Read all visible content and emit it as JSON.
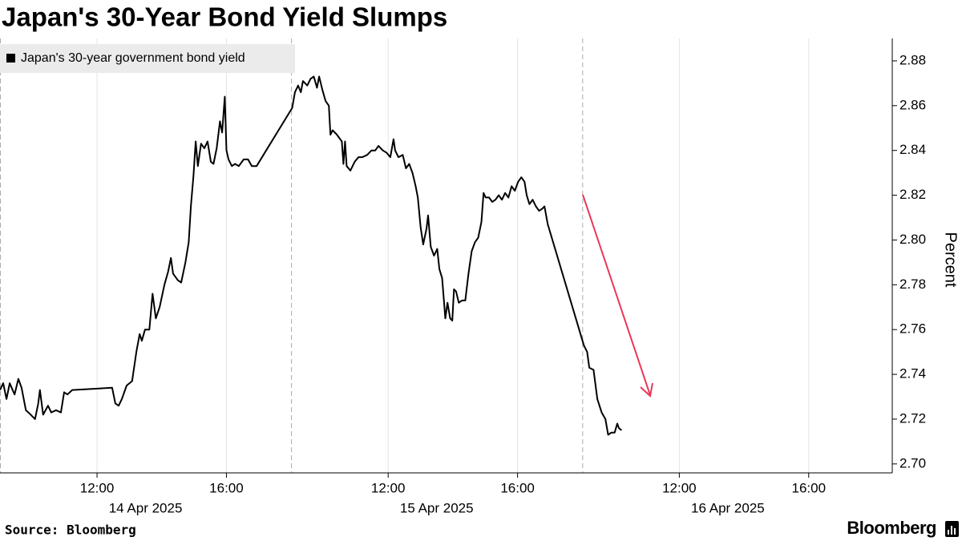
{
  "chart_data": {
    "type": "line",
    "title": "Japan's 30-Year Bond Yield Slumps",
    "y_label": "Percent",
    "source": "Source: Bloomberg",
    "brand": "Bloomberg",
    "date_labels": [
      "14 Apr 2025",
      "15 Apr 2025",
      "16 Apr 2025"
    ],
    "xlim": [
      "2025-04-14 09:00",
      "2025-04-16 18:35"
    ],
    "xticks": [
      {
        "value": "2025-04-14 12:00",
        "label": "12:00"
      },
      {
        "value": "2025-04-14 16:00",
        "label": "16:00"
      },
      {
        "value": "2025-04-15 12:00",
        "label": "12:00"
      },
      {
        "value": "2025-04-15 16:00",
        "label": "16:00"
      },
      {
        "value": "2025-04-16 12:00",
        "label": "12:00"
      },
      {
        "value": "2025-04-16 16:00",
        "label": "16:00"
      }
    ],
    "ylim": [
      2.696,
      2.89
    ],
    "yticks": [
      {
        "value": 2.7,
        "label": "2.70"
      },
      2.72,
      2.74,
      2.76,
      2.78,
      {
        "value": 2.8,
        "label": "2.80"
      },
      2.82,
      2.84,
      2.86,
      2.88
    ],
    "x": [
      "2025-04-14 09:00",
      "2025-04-14 09:06",
      "2025-04-14 09:12",
      "2025-04-14 09:18",
      "2025-04-14 09:27",
      "2025-04-14 09:34",
      "2025-04-14 09:40",
      "2025-04-14 09:48",
      "2025-04-14 09:57",
      "2025-04-14 10:05",
      "2025-04-14 10:11",
      "2025-04-14 10:14",
      "2025-04-14 10:20",
      "2025-04-14 10:29",
      "2025-04-14 10:35",
      "2025-04-14 10:44",
      "2025-04-14 10:53",
      "2025-04-14 10:59",
      "2025-04-14 11:05",
      "2025-04-14 11:14",
      "2025-04-14 12:28",
      "2025-04-14 12:34",
      "2025-04-14 12:40",
      "2025-04-14 12:46",
      "2025-04-14 12:55",
      "2025-04-14 13:05",
      "2025-04-14 13:13",
      "2025-04-14 13:19",
      "2025-04-14 13:23",
      "2025-04-14 13:29",
      "2025-04-14 13:37",
      "2025-04-14 13:43",
      "2025-04-14 13:49",
      "2025-04-14 13:56",
      "2025-04-14 14:05",
      "2025-04-14 14:12",
      "2025-04-14 14:17",
      "2025-04-14 14:21",
      "2025-04-14 14:30",
      "2025-04-14 14:36",
      "2025-04-14 14:44",
      "2025-04-14 14:50",
      "2025-04-14 14:54",
      "2025-04-14 14:59",
      "2025-04-14 15:03",
      "2025-04-14 15:07",
      "2025-04-14 15:13",
      "2025-04-14 15:19",
      "2025-04-14 15:25",
      "2025-04-14 15:31",
      "2025-04-14 15:36",
      "2025-04-14 15:42",
      "2025-04-14 15:48",
      "2025-04-14 15:52",
      "2025-04-14 15:57",
      "2025-04-14 16:00",
      "2025-04-14 16:04",
      "2025-04-14 16:10",
      "2025-04-14 16:16",
      "2025-04-14 16:23",
      "2025-04-14 16:32",
      "2025-04-14 16:40",
      "2025-04-14 16:47",
      "2025-04-14 16:56",
      "2025-04-15 09:02",
      "2025-04-15 09:07",
      "2025-04-15 09:13",
      "2025-04-15 09:18",
      "2025-04-15 09:22",
      "2025-04-15 09:30",
      "2025-04-15 09:36",
      "2025-04-15 09:42",
      "2025-04-15 09:48",
      "2025-04-15 09:52",
      "2025-04-15 09:58",
      "2025-04-15 10:04",
      "2025-04-15 10:10",
      "2025-04-15 10:13",
      "2025-04-15 10:17",
      "2025-04-15 10:25",
      "2025-04-15 10:34",
      "2025-04-15 10:37",
      "2025-04-15 10:40",
      "2025-04-15 10:43",
      "2025-04-15 10:50",
      "2025-04-15 10:58",
      "2025-04-15 11:05",
      "2025-04-15 11:12",
      "2025-04-15 11:21",
      "2025-04-15 11:29",
      "2025-04-15 11:36",
      "2025-04-15 11:42",
      "2025-04-15 11:50",
      "2025-04-15 11:57",
      "2025-04-15 12:04",
      "2025-04-15 12:10",
      "2025-04-15 12:13",
      "2025-04-15 12:19",
      "2025-04-15 12:27",
      "2025-04-15 12:33",
      "2025-04-15 12:39",
      "2025-04-15 12:45",
      "2025-04-15 12:51",
      "2025-04-15 12:55",
      "2025-04-15 13:00",
      "2025-04-15 13:05",
      "2025-04-15 13:11",
      "2025-04-15 13:14",
      "2025-04-15 13:19",
      "2025-04-15 13:25",
      "2025-04-15 13:31",
      "2025-04-15 13:35",
      "2025-04-15 13:40",
      "2025-04-15 13:46",
      "2025-04-15 13:50",
      "2025-04-15 13:55",
      "2025-04-15 13:59",
      "2025-04-15 14:02",
      "2025-04-15 14:06",
      "2025-04-15 14:11",
      "2025-04-15 14:17",
      "2025-04-15 14:23",
      "2025-04-15 14:29",
      "2025-04-15 14:35",
      "2025-04-15 14:41",
      "2025-04-15 14:47",
      "2025-04-15 14:53",
      "2025-04-15 14:57",
      "2025-04-15 15:01",
      "2025-04-15 15:07",
      "2025-04-15 15:13",
      "2025-04-15 15:19",
      "2025-04-15 15:25",
      "2025-04-15 15:31",
      "2025-04-15 15:37",
      "2025-04-15 15:43",
      "2025-04-15 15:49",
      "2025-04-15 15:55",
      "2025-04-15 16:01",
      "2025-04-15 16:07",
      "2025-04-15 16:13",
      "2025-04-15 16:17",
      "2025-04-15 16:22",
      "2025-04-15 16:28",
      "2025-04-15 16:34",
      "2025-04-15 16:40",
      "2025-04-15 16:46",
      "2025-04-15 16:50",
      "2025-04-15 16:56",
      "2025-04-16 09:03",
      "2025-04-16 09:09",
      "2025-04-16 09:13",
      "2025-04-16 09:21",
      "2025-04-16 09:28",
      "2025-04-16 09:36",
      "2025-04-16 09:43",
      "2025-04-16 09:48",
      "2025-04-16 09:54",
      "2025-04-16 10:00",
      "2025-04-16 10:05",
      "2025-04-16 10:08",
      "2025-04-16 10:13"
    ],
    "series": [
      {
        "name": "Japan's 30-year government bond yield",
        "color": "#000000",
        "values": [
          2.733,
          2.736,
          2.729,
          2.736,
          2.731,
          2.738,
          2.734,
          2.724,
          2.722,
          2.72,
          2.727,
          2.733,
          2.722,
          2.726,
          2.723,
          2.724,
          2.723,
          2.732,
          2.731,
          2.733,
          2.734,
          2.727,
          2.726,
          2.729,
          2.735,
          2.737,
          2.75,
          2.758,
          2.755,
          2.76,
          2.76,
          2.776,
          2.765,
          2.77,
          2.78,
          2.786,
          2.792,
          2.785,
          2.782,
          2.781,
          2.79,
          2.799,
          2.815,
          2.829,
          2.844,
          2.833,
          2.843,
          2.841,
          2.844,
          2.835,
          2.834,
          2.841,
          2.853,
          2.848,
          2.864,
          2.84,
          2.836,
          2.833,
          2.834,
          2.833,
          2.836,
          2.836,
          2.833,
          2.833,
          2.859,
          2.866,
          2.869,
          2.866,
          2.871,
          2.869,
          2.872,
          2.873,
          2.868,
          2.873,
          2.867,
          2.862,
          2.86,
          2.847,
          2.849,
          2.847,
          2.844,
          2.834,
          2.844,
          2.833,
          2.831,
          2.835,
          2.837,
          2.837,
          2.838,
          2.84,
          2.84,
          2.842,
          2.84,
          2.839,
          2.837,
          2.845,
          2.84,
          2.837,
          2.838,
          2.832,
          2.834,
          2.83,
          2.824,
          2.819,
          2.806,
          2.798,
          2.805,
          2.811,
          2.797,
          2.793,
          2.796,
          2.787,
          2.783,
          2.765,
          2.772,
          2.765,
          2.764,
          2.778,
          2.777,
          2.772,
          2.773,
          2.773,
          2.785,
          2.795,
          2.799,
          2.801,
          2.808,
          2.821,
          2.819,
          2.819,
          2.817,
          2.818,
          2.82,
          2.818,
          2.821,
          2.819,
          2.824,
          2.822,
          2.826,
          2.828,
          2.826,
          2.82,
          2.816,
          2.818,
          2.815,
          2.813,
          2.814,
          2.815,
          2.807,
          2.753,
          2.75,
          2.743,
          2.742,
          2.729,
          2.723,
          2.72,
          2.713,
          2.714,
          2.714,
          2.718,
          2.716,
          2.715
        ]
      }
    ],
    "grid": true,
    "legend": "top-left"
  }
}
